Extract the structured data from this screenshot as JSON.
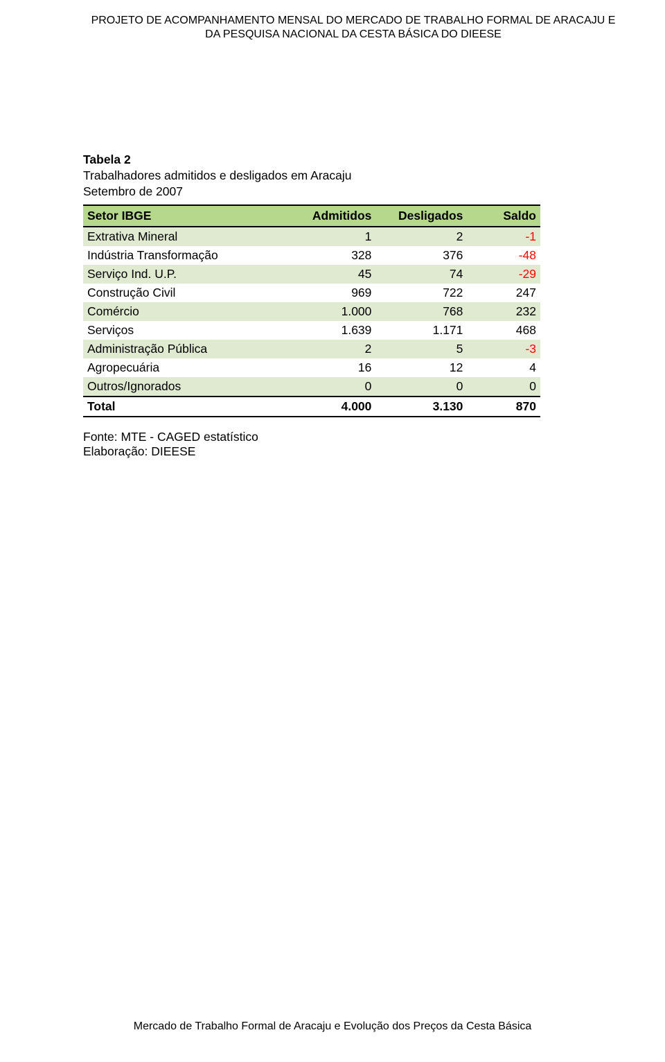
{
  "header": {
    "line1": "PROJETO DE ACOMPANHAMENTO MENSAL DO MERCADO DE TRABALHO FORMAL DE ARACAJU E",
    "line2": "DA PESQUISA NACIONAL DA CESTA BÁSICA DO DIEESE"
  },
  "table": {
    "title": "Tabela 2",
    "subtitle1": "Trabalhadores admitidos e desligados em Aracaju",
    "subtitle2": "Setembro de 2007",
    "columns": [
      "Setor IBGE",
      "Admitidos",
      "Desligados",
      "Saldo"
    ],
    "col_widths_pct": [
      46,
      18,
      20,
      16
    ],
    "header_bg": "#b5d88c",
    "row_alt_bg": "#dfead1",
    "row_bg": "#ffffff",
    "neg_color": "#ff0000",
    "rows": [
      {
        "label": "Extrativa Mineral",
        "admitidos": "1",
        "desligados": "2",
        "saldo": "-1",
        "saldo_neg": true
      },
      {
        "label": "Indústria Transformação",
        "admitidos": "328",
        "desligados": "376",
        "saldo": "-48",
        "saldo_neg": true
      },
      {
        "label": "Serviço Ind. U.P.",
        "admitidos": "45",
        "desligados": "74",
        "saldo": "-29",
        "saldo_neg": true
      },
      {
        "label": "Construção Civil",
        "admitidos": "969",
        "desligados": "722",
        "saldo": "247",
        "saldo_neg": false
      },
      {
        "label": "Comércio",
        "admitidos": "1.000",
        "desligados": "768",
        "saldo": "232",
        "saldo_neg": false
      },
      {
        "label": "Serviços",
        "admitidos": "1.639",
        "desligados": "1.171",
        "saldo": "468",
        "saldo_neg": false
      },
      {
        "label": "Administração Pública",
        "admitidos": "2",
        "desligados": "5",
        "saldo": "-3",
        "saldo_neg": true
      },
      {
        "label": "Agropecuária",
        "admitidos": "16",
        "desligados": "12",
        "saldo": "4",
        "saldo_neg": false
      },
      {
        "label": "Outros/Ignorados",
        "admitidos": "0",
        "desligados": "0",
        "saldo": "0",
        "saldo_neg": false
      }
    ],
    "total": {
      "label": "Total",
      "admitidos": "4.000",
      "desligados": "3.130",
      "saldo": "870",
      "saldo_neg": false
    }
  },
  "source": "Fonte: MTE - CAGED estatístico",
  "elaboration": "Elaboração: DIEESE",
  "footer": "Mercado de Trabalho Formal de Aracaju e Evolução dos Preços da Cesta Básica"
}
